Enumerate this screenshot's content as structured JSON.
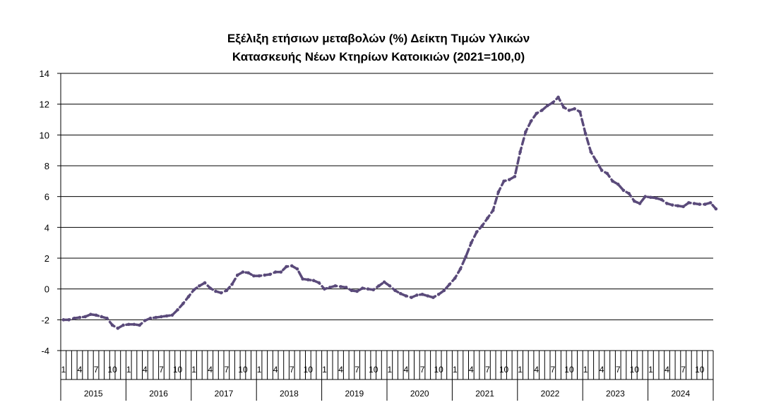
{
  "chart_data": {
    "type": "line",
    "title_line1": "Εξέλιξη ετήσιων μεταβολών (%) Δείκτη Τιμών Υλικών",
    "title_line2": "Κατασκευής Νέων Κτηρίων Κατοικιών (2021=100,0)",
    "xlabel": "",
    "ylabel": "",
    "ylim": [
      -4,
      14
    ],
    "yticks": [
      -4,
      -2,
      0,
      2,
      4,
      6,
      8,
      10,
      12,
      14
    ],
    "grid": true,
    "legend": "none",
    "years": [
      "2015",
      "2016",
      "2017",
      "2018",
      "2019",
      "2020",
      "2021",
      "2022",
      "2023",
      "2024"
    ],
    "month_tick_labels": [
      "1",
      "4",
      "7",
      "10"
    ],
    "line_color": "#5a4a7a",
    "series": [
      {
        "values": [
          -2.0,
          -2.0,
          -1.9,
          -1.85,
          -1.8,
          -1.65,
          -1.7,
          -1.8,
          -1.9,
          -2.35,
          -2.55,
          -2.35,
          -2.3,
          -2.3,
          -2.35,
          -2.05,
          -1.9,
          -1.85,
          -1.8,
          -1.75,
          -1.7,
          -1.35,
          -0.95,
          -0.5,
          -0.05,
          0.2,
          0.4,
          0.05,
          -0.15,
          -0.25,
          -0.1,
          0.3,
          0.9,
          1.1,
          1.05,
          0.85,
          0.85,
          0.9,
          0.95,
          1.1,
          1.1,
          1.45,
          1.5,
          1.3,
          0.65,
          0.6,
          0.55,
          0.4,
          0.0,
          0.1,
          0.2,
          0.15,
          0.1,
          -0.1,
          -0.15,
          0.05,
          0.0,
          -0.05,
          0.2,
          0.45,
          0.2,
          -0.1,
          -0.3,
          -0.45,
          -0.55,
          -0.4,
          -0.35,
          -0.45,
          -0.55,
          -0.35,
          -0.1,
          0.3,
          0.7,
          1.3,
          2.1,
          3.0,
          3.7,
          4.1,
          4.6,
          5.1,
          6.3,
          7.0,
          7.1,
          7.3,
          8.9,
          10.2,
          10.9,
          11.4,
          11.6,
          11.9,
          12.1,
          12.45,
          11.8,
          11.6,
          11.7,
          11.5,
          10.1,
          8.9,
          8.3,
          7.7,
          7.5,
          7.0,
          6.8,
          6.4,
          6.2,
          5.7,
          5.55,
          6.0,
          5.95,
          5.9,
          5.8,
          5.55,
          5.45,
          5.4,
          5.35,
          5.6,
          5.55,
          5.5,
          5.5,
          5.6,
          5.2
        ]
      }
    ]
  }
}
